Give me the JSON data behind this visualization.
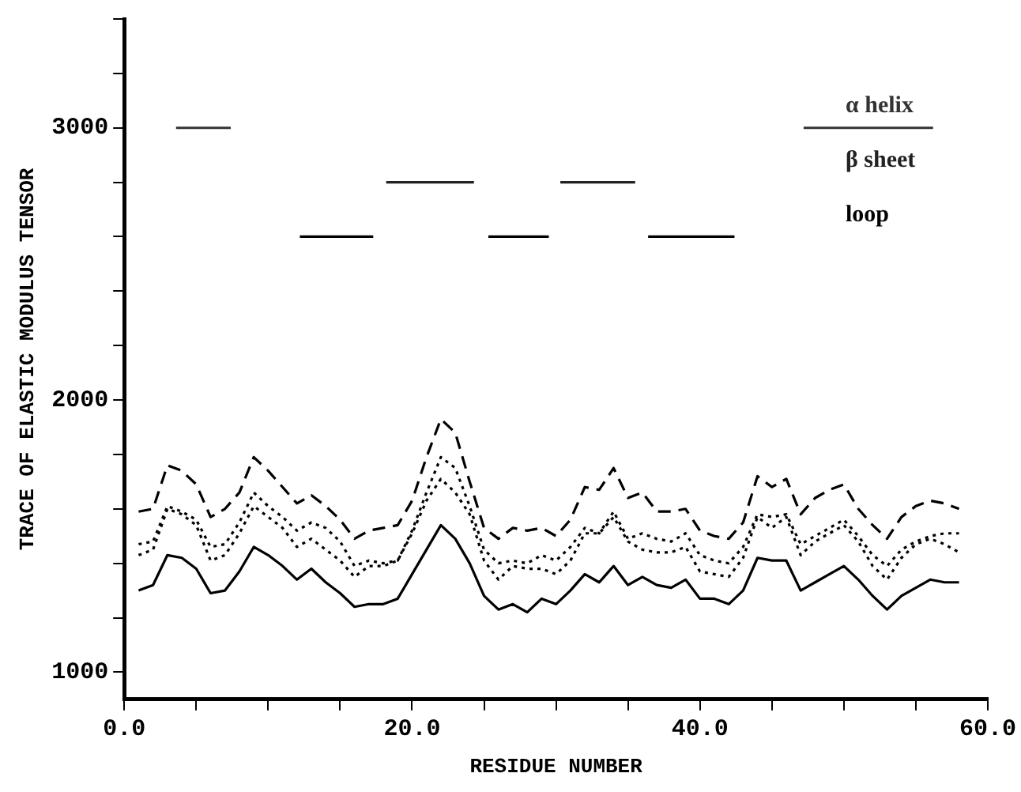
{
  "chart_data": {
    "type": "line",
    "xlabel": "RESIDUE NUMBER",
    "ylabel": "TRACE OF ELASTIC MODULUS TENSOR",
    "xlim": [
      0,
      60
    ],
    "ylim": [
      900,
      3400
    ],
    "xticks": [
      {
        "value": 0,
        "label": "0.0"
      },
      {
        "value": 5,
        "label": null
      },
      {
        "value": 10,
        "label": null
      },
      {
        "value": 15,
        "label": null
      },
      {
        "value": 20,
        "label": "20.0"
      },
      {
        "value": 25,
        "label": null
      },
      {
        "value": 30,
        "label": null
      },
      {
        "value": 35,
        "label": null
      },
      {
        "value": 40,
        "label": "40.0"
      },
      {
        "value": 45,
        "label": null
      },
      {
        "value": 50,
        "label": null
      },
      {
        "value": 55,
        "label": null
      },
      {
        "value": 60,
        "label": "60.0"
      }
    ],
    "yticks": [
      1000,
      {
        "value": 1200,
        "label": null
      },
      {
        "value": 1400,
        "label": null
      },
      {
        "value": 1600,
        "label": null
      },
      {
        "value": 1800,
        "label": null
      },
      2000,
      {
        "value": 2200,
        "label": null
      },
      {
        "value": 2400,
        "label": null
      },
      {
        "value": 2600,
        "label": null
      },
      {
        "value": 2800,
        "label": null
      },
      3000,
      {
        "value": 3200,
        "label": null
      },
      {
        "value": 3400,
        "label": null
      }
    ],
    "grid": false,
    "legend": false,
    "marker": "none",
    "x": [
      1,
      2,
      3,
      4,
      5,
      6,
      7,
      8,
      9,
      10,
      11,
      12,
      13,
      14,
      15,
      16,
      17,
      18,
      19,
      20,
      21,
      22,
      23,
      24,
      25,
      26,
      27,
      28,
      29,
      30,
      31,
      32,
      33,
      34,
      35,
      36,
      37,
      38,
      39,
      40,
      41,
      42,
      43,
      44,
      45,
      46,
      47,
      48,
      49,
      50,
      51,
      52,
      53,
      54,
      55,
      56,
      57,
      58
    ],
    "series": [
      {
        "color": "#000000",
        "line_style": "dashed",
        "values": [
          1590,
          1600,
          1760,
          1740,
          1690,
          1570,
          1600,
          1660,
          1790,
          1740,
          1680,
          1620,
          1650,
          1610,
          1560,
          1490,
          1520,
          1530,
          1540,
          1630,
          1790,
          1930,
          1880,
          1700,
          1530,
          1490,
          1530,
          1520,
          1530,
          1500,
          1560,
          1680,
          1670,
          1750,
          1640,
          1660,
          1590,
          1590,
          1600,
          1520,
          1500,
          1490,
          1550,
          1720,
          1680,
          1710,
          1580,
          1640,
          1670,
          1690,
          1600,
          1540,
          1490,
          1570,
          1610,
          1630,
          1620,
          1600
        ]
      },
      {
        "color": "#000000",
        "line_style": "dotted",
        "values": [
          1470,
          1480,
          1610,
          1590,
          1560,
          1460,
          1470,
          1550,
          1660,
          1610,
          1570,
          1520,
          1550,
          1530,
          1480,
          1390,
          1410,
          1400,
          1410,
          1520,
          1660,
          1790,
          1750,
          1610,
          1450,
          1400,
          1410,
          1400,
          1430,
          1410,
          1460,
          1530,
          1510,
          1590,
          1490,
          1510,
          1490,
          1480,
          1510,
          1430,
          1410,
          1400,
          1460,
          1580,
          1570,
          1580,
          1470,
          1500,
          1530,
          1560,
          1500,
          1430,
          1390,
          1450,
          1480,
          1500,
          1510,
          1510
        ]
      },
      {
        "color": "#000000",
        "line_style": "dotted",
        "values": [
          1430,
          1450,
          1600,
          1580,
          1540,
          1410,
          1430,
          1510,
          1610,
          1570,
          1530,
          1460,
          1490,
          1450,
          1410,
          1350,
          1390,
          1390,
          1410,
          1510,
          1630,
          1710,
          1660,
          1580,
          1410,
          1340,
          1390,
          1380,
          1380,
          1360,
          1410,
          1510,
          1510,
          1570,
          1480,
          1450,
          1440,
          1440,
          1460,
          1370,
          1360,
          1350,
          1420,
          1570,
          1530,
          1570,
          1430,
          1480,
          1510,
          1540,
          1480,
          1390,
          1340,
          1420,
          1470,
          1490,
          1470,
          1440
        ]
      },
      {
        "color": "#000000",
        "line_style": "solid",
        "values": [
          1300,
          1320,
          1430,
          1420,
          1380,
          1290,
          1300,
          1370,
          1460,
          1430,
          1390,
          1340,
          1380,
          1330,
          1290,
          1240,
          1250,
          1250,
          1270,
          1360,
          1450,
          1540,
          1490,
          1400,
          1280,
          1230,
          1250,
          1220,
          1270,
          1250,
          1300,
          1360,
          1330,
          1390,
          1320,
          1350,
          1320,
          1310,
          1340,
          1270,
          1270,
          1250,
          1300,
          1420,
          1410,
          1410,
          1300,
          1330,
          1360,
          1390,
          1340,
          1280,
          1230,
          1280,
          1310,
          1340,
          1330,
          1330
        ]
      },
      {
        "name": "α helix",
        "color": "#333333",
        "line_style": "solid",
        "x": [
          3.6,
          7.4,
          27,
          47.2,
          56.2
        ],
        "values": [
          3000,
          3000,
          null,
          3000,
          3000
        ]
      },
      {
        "name": "β sheet",
        "color": "#222222",
        "line_style": "solid",
        "x": [
          18.2,
          24.3,
          27,
          30.3,
          35.5
        ],
        "values": [
          2800,
          2800,
          null,
          2800,
          2800
        ]
      },
      {
        "name": "loop",
        "color": "#000000",
        "line_style": "solid",
        "x": [
          12.2,
          17.3,
          20,
          25.3,
          29.5,
          33,
          36.4,
          42.4
        ],
        "values": [
          2600,
          2600,
          null,
          2600,
          2600,
          null,
          2600,
          2600
        ]
      }
    ]
  }
}
